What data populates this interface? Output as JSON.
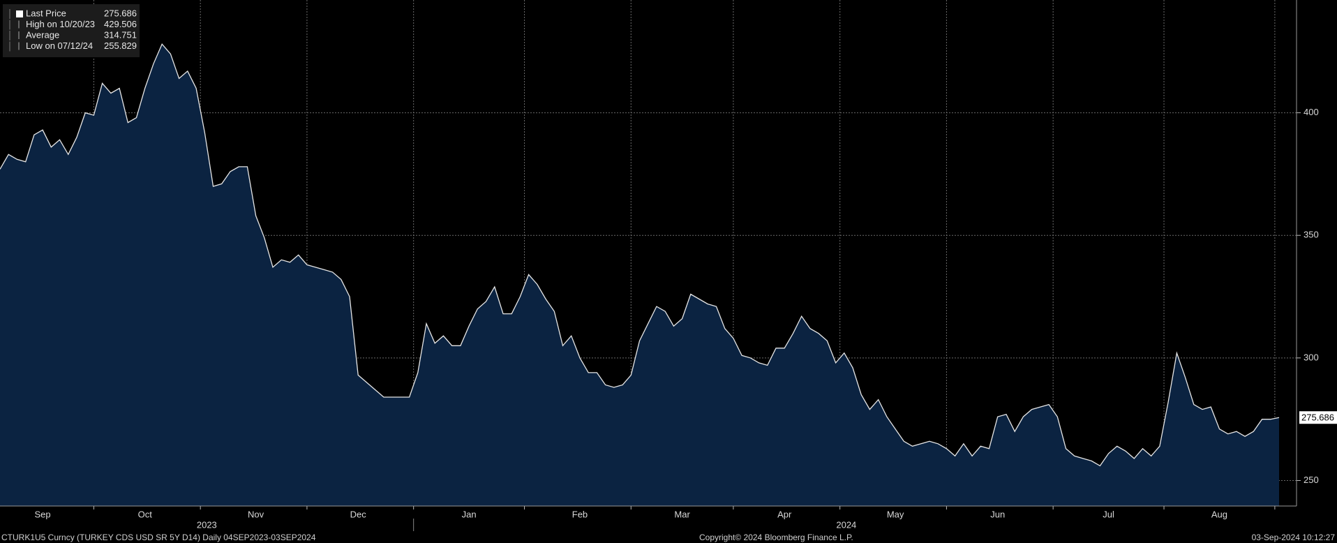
{
  "chart_data": {
    "type": "area",
    "color": "#0b2341",
    "line_color": "#e6e6e6",
    "background": "#000000",
    "grid": true,
    "ylim": [
      239.6,
      446
    ],
    "yticks": [
      250,
      300,
      350,
      400
    ],
    "categories": [
      null,
      null,
      null,
      null,
      null,
      "Sep",
      null,
      null,
      null,
      null,
      null,
      null,
      null,
      null,
      null,
      null,
      null,
      "Oct",
      null,
      null,
      null,
      null,
      null,
      null,
      null,
      null,
      null,
      null,
      null,
      null,
      "Nov",
      null,
      null,
      null,
      null,
      null,
      null,
      null,
      null,
      null,
      null,
      null,
      "Dec",
      null,
      null,
      null,
      null,
      null,
      null,
      null,
      null,
      null,
      null,
      null,
      null,
      "Jan",
      null,
      null,
      null,
      null,
      null,
      null,
      null,
      null,
      null,
      null,
      null,
      null,
      "Feb",
      null,
      null,
      null,
      null,
      null,
      null,
      null,
      null,
      null,
      null,
      null,
      "Mar",
      null,
      null,
      null,
      null,
      null,
      null,
      null,
      null,
      null,
      null,
      null,
      "Apr",
      null,
      null,
      null,
      null,
      null,
      null,
      null,
      null,
      null,
      null,
      null,
      null,
      "May",
      null,
      null,
      null,
      null,
      null,
      null,
      null,
      null,
      null,
      null,
      null,
      "Jun",
      null,
      null,
      null,
      null,
      null,
      null,
      null,
      null,
      null,
      null,
      null,
      null,
      "Jul",
      null,
      null,
      null,
      null,
      null,
      null,
      null,
      null,
      null,
      null,
      null,
      null,
      "Aug",
      null,
      null,
      null,
      null,
      null,
      null,
      null
    ],
    "values": [
      377,
      383,
      381,
      380,
      391,
      393,
      386,
      389,
      383,
      390,
      400,
      399,
      412,
      408,
      410,
      396,
      398,
      410,
      420,
      428,
      424,
      414,
      417,
      410,
      392,
      370,
      371,
      376,
      378,
      378,
      358,
      349,
      337,
      340,
      339,
      342,
      338,
      337,
      336,
      335,
      332,
      325,
      293,
      290,
      287,
      284,
      284,
      284,
      284,
      294,
      314,
      306,
      309,
      305,
      305,
      313,
      320,
      323,
      329,
      318,
      318,
      325,
      334,
      330,
      324,
      319,
      305,
      309,
      300,
      294,
      294,
      289,
      288,
      289,
      293,
      307,
      314,
      321,
      319,
      313,
      316,
      326,
      324,
      322,
      321,
      312,
      308,
      301,
      300,
      298,
      297,
      304,
      304,
      310,
      317,
      312,
      310,
      307,
      298,
      302,
      296,
      285,
      279,
      283,
      276,
      271,
      266,
      264,
      265,
      266,
      265,
      263,
      260,
      265,
      260,
      264,
      263,
      276,
      277,
      270,
      276,
      279,
      280,
      281,
      276,
      263,
      260,
      259,
      258,
      256,
      261,
      264,
      262,
      259,
      263,
      260,
      264,
      282,
      302,
      292,
      281,
      279,
      280,
      271,
      269,
      270,
      268,
      270,
      275,
      275,
      275.686
    ],
    "year_labels": [
      "2023",
      "2024"
    ],
    "legend": [
      {
        "label": "Last Price",
        "value": 275.686
      },
      {
        "label": "High on 10/20/23",
        "value": 429.506
      },
      {
        "label": "Average",
        "value": 314.751
      },
      {
        "label": "Low on 07/12/24",
        "value": 255.829
      }
    ]
  },
  "footer": {
    "security": "CTURK1U5 Curncy (TURKEY CDS USD SR 5Y D14)  Daily 04SEP2023-03SEP2024",
    "copyright": "Copyright© 2024 Bloomberg Finance L.P.",
    "timestamp": "03-Sep-2024 10:12:27"
  }
}
